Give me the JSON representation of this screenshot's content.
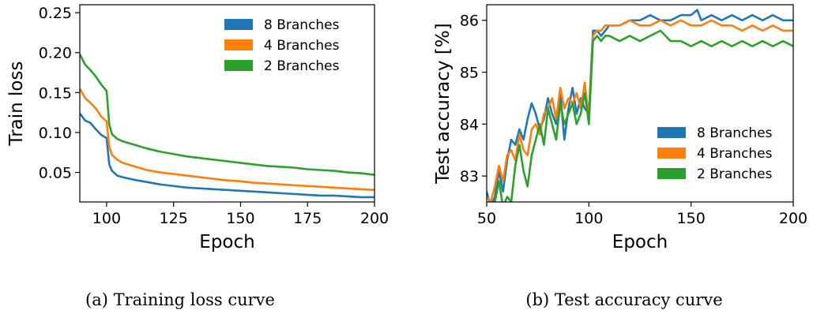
{
  "colors": {
    "s8": "#1f77b4",
    "s4": "#ff7f0e",
    "s2": "#2ca02c"
  },
  "chart_data": [
    {
      "type": "line",
      "title": "",
      "caption": "(a) Training loss curve",
      "xlabel": "Epoch",
      "ylabel": "Train loss",
      "xlim": [
        90,
        200
      ],
      "ylim": [
        0.013,
        0.26
      ],
      "xticks": [
        100,
        125,
        150,
        175,
        200
      ],
      "yticks": [
        0.05,
        0.1,
        0.15,
        0.2,
        0.25
      ],
      "ytick_labels": [
        "0.05",
        "0.10",
        "0.15",
        "0.20",
        "0.25"
      ],
      "grid": false,
      "legend_position": "top-right",
      "series": [
        {
          "name": "8 Branches",
          "x": [
            90,
            92,
            94,
            96,
            98,
            100,
            101,
            102,
            104,
            106,
            110,
            115,
            120,
            125,
            130,
            135,
            140,
            145,
            150,
            155,
            160,
            165,
            170,
            175,
            180,
            185,
            190,
            195,
            200
          ],
          "y": [
            0.124,
            0.115,
            0.112,
            0.104,
            0.097,
            0.093,
            0.06,
            0.052,
            0.046,
            0.044,
            0.041,
            0.038,
            0.035,
            0.033,
            0.031,
            0.03,
            0.029,
            0.028,
            0.027,
            0.026,
            0.025,
            0.024,
            0.023,
            0.022,
            0.021,
            0.021,
            0.02,
            0.019,
            0.019
          ]
        },
        {
          "name": "4 Branches",
          "x": [
            90,
            92,
            94,
            96,
            98,
            100,
            101,
            102,
            104,
            106,
            110,
            115,
            120,
            125,
            130,
            135,
            140,
            145,
            150,
            155,
            160,
            165,
            170,
            175,
            180,
            185,
            190,
            195,
            200
          ],
          "y": [
            0.155,
            0.143,
            0.137,
            0.13,
            0.12,
            0.114,
            0.082,
            0.072,
            0.066,
            0.062,
            0.058,
            0.053,
            0.05,
            0.048,
            0.046,
            0.044,
            0.042,
            0.04,
            0.039,
            0.037,
            0.036,
            0.035,
            0.034,
            0.033,
            0.032,
            0.031,
            0.03,
            0.029,
            0.028
          ]
        },
        {
          "name": "2 Branches",
          "x": [
            90,
            92,
            94,
            96,
            98,
            100,
            101,
            102,
            104,
            106,
            110,
            115,
            120,
            125,
            130,
            135,
            140,
            145,
            150,
            155,
            160,
            165,
            170,
            175,
            180,
            185,
            190,
            195,
            200
          ],
          "y": [
            0.198,
            0.185,
            0.178,
            0.17,
            0.16,
            0.152,
            0.11,
            0.098,
            0.092,
            0.089,
            0.085,
            0.08,
            0.076,
            0.073,
            0.07,
            0.068,
            0.066,
            0.064,
            0.062,
            0.06,
            0.058,
            0.057,
            0.056,
            0.054,
            0.053,
            0.052,
            0.05,
            0.049,
            0.047
          ]
        }
      ]
    },
    {
      "type": "line",
      "title": "",
      "caption": "(b) Test accuracy curve",
      "xlabel": "Epoch",
      "ylabel": "Test accuracy [%]",
      "xlim": [
        50,
        200
      ],
      "ylim": [
        82.5,
        86.3
      ],
      "xticks": [
        50,
        100,
        150,
        200
      ],
      "yticks": [
        83,
        84,
        85,
        86
      ],
      "ytick_labels": [
        "83",
        "84",
        "85",
        "86"
      ],
      "grid": false,
      "legend_position": "bottom-right",
      "series": [
        {
          "name": "8 Branches",
          "x": [
            50,
            52,
            54,
            56,
            58,
            60,
            62,
            64,
            66,
            68,
            70,
            72,
            74,
            76,
            78,
            80,
            82,
            84,
            86,
            88,
            90,
            92,
            94,
            96,
            98,
            100,
            102,
            104,
            106,
            108,
            110,
            115,
            120,
            125,
            130,
            135,
            140,
            145,
            150,
            153,
            155,
            160,
            165,
            170,
            175,
            180,
            185,
            190,
            195,
            200
          ],
          "y": [
            82.7,
            82.4,
            82.6,
            83.1,
            82.7,
            83.3,
            83.7,
            83.6,
            83.9,
            83.7,
            84.1,
            84.4,
            84.2,
            83.9,
            84.1,
            84.5,
            84.2,
            84.0,
            84.6,
            83.7,
            84.3,
            84.7,
            84.2,
            84.5,
            84.3,
            84.2,
            85.8,
            85.8,
            85.7,
            85.8,
            85.9,
            85.9,
            86.0,
            86.0,
            86.1,
            86.0,
            86.0,
            86.1,
            86.1,
            86.2,
            86.0,
            86.1,
            86.0,
            86.1,
            86.0,
            86.1,
            86.0,
            86.1,
            86.0,
            86.0
          ]
        },
        {
          "name": "4 Branches",
          "x": [
            50,
            52,
            54,
            56,
            58,
            60,
            62,
            64,
            66,
            68,
            70,
            72,
            74,
            76,
            78,
            80,
            82,
            84,
            86,
            88,
            90,
            92,
            94,
            96,
            98,
            100,
            102,
            104,
            106,
            108,
            110,
            115,
            120,
            125,
            130,
            135,
            140,
            145,
            150,
            155,
            160,
            165,
            170,
            175,
            180,
            185,
            190,
            195,
            200
          ],
          "y": [
            82.6,
            82.5,
            82.8,
            83.2,
            82.9,
            83.4,
            83.5,
            83.3,
            83.8,
            83.5,
            83.4,
            83.9,
            84.0,
            83.8,
            84.2,
            84.3,
            84.5,
            84.1,
            84.7,
            84.3,
            84.5,
            84.4,
            84.6,
            84.3,
            84.8,
            84.1,
            85.7,
            85.8,
            85.8,
            85.9,
            85.9,
            85.9,
            86.0,
            85.9,
            85.9,
            86.0,
            85.9,
            86.0,
            85.9,
            85.9,
            86.0,
            85.9,
            85.9,
            85.8,
            85.9,
            85.8,
            85.9,
            85.8,
            85.8
          ]
        },
        {
          "name": "2 Branches",
          "x": [
            50,
            52,
            54,
            56,
            58,
            60,
            62,
            64,
            66,
            68,
            70,
            72,
            74,
            76,
            78,
            80,
            82,
            84,
            86,
            88,
            90,
            92,
            94,
            96,
            98,
            100,
            102,
            104,
            106,
            108,
            110,
            115,
            120,
            125,
            130,
            135,
            140,
            145,
            150,
            155,
            160,
            165,
            170,
            175,
            180,
            185,
            190,
            195,
            200
          ],
          "y": [
            82.4,
            82.3,
            82.5,
            82.9,
            82.4,
            82.6,
            82.5,
            83.2,
            83.6,
            83.1,
            82.8,
            83.4,
            83.7,
            84.0,
            83.6,
            84.3,
            84.0,
            83.7,
            84.4,
            84.0,
            84.2,
            84.4,
            84.0,
            84.2,
            84.6,
            84.0,
            85.6,
            85.7,
            85.6,
            85.7,
            85.7,
            85.6,
            85.7,
            85.6,
            85.7,
            85.8,
            85.6,
            85.6,
            85.5,
            85.6,
            85.5,
            85.6,
            85.5,
            85.6,
            85.5,
            85.6,
            85.5,
            85.6,
            85.5
          ]
        }
      ]
    }
  ]
}
